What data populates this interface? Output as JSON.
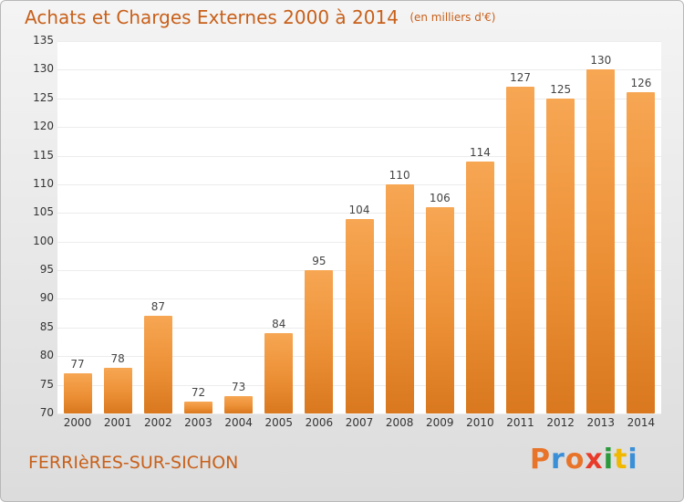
{
  "header": {
    "title": "Achats et Charges Externes 2000 à 2014",
    "unit": "(en milliers d'€)"
  },
  "footer": {
    "city": "FERRIèRES-SUR-SICHON",
    "logo": "Proxiti"
  },
  "colors": {
    "title": "#c8601a",
    "bar_top": "#f7a653",
    "bar_bottom": "#d9781e",
    "logo": [
      "#e8742a",
      "#3a8fd6",
      "#e8742a",
      "#e83b2a",
      "#2a9a3a",
      "#f0b800",
      "#3a8fd6"
    ]
  },
  "chart_data": {
    "type": "bar",
    "title": "Achats et Charges Externes 2000 à 2014",
    "subtitle": "(en milliers d'€)",
    "categories": [
      "2000",
      "2001",
      "2002",
      "2003",
      "2004",
      "2005",
      "2006",
      "2007",
      "2008",
      "2009",
      "2010",
      "2011",
      "2012",
      "2013",
      "2014"
    ],
    "values": [
      77,
      78,
      87,
      72,
      73,
      84,
      95,
      104,
      110,
      106,
      114,
      127,
      125,
      130,
      126
    ],
    "ylim": [
      70,
      135
    ],
    "yticks": [
      70,
      75,
      80,
      85,
      90,
      95,
      100,
      105,
      110,
      115,
      120,
      125,
      130,
      135
    ],
    "grid": true,
    "xlabel": "",
    "ylabel": ""
  }
}
